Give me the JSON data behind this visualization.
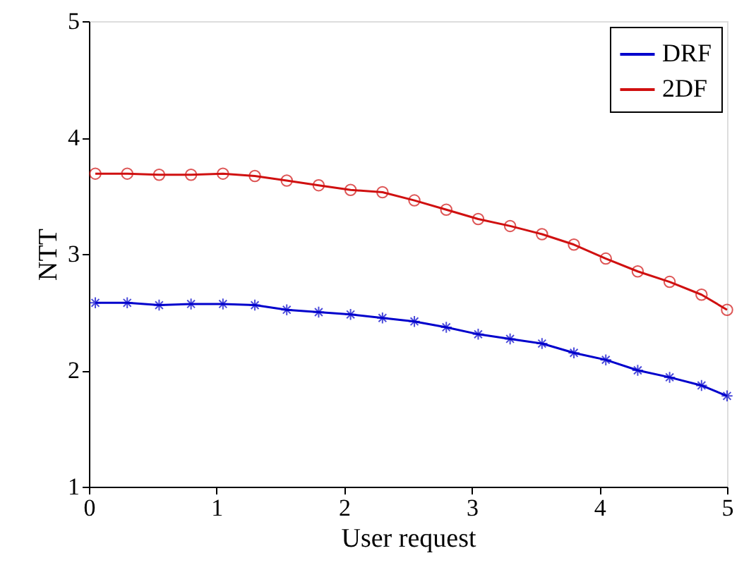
{
  "chart_data": {
    "type": "line",
    "xlabel": "User request",
    "ylabel": "NTT",
    "x": [
      0.05,
      0.3,
      0.55,
      0.8,
      1.05,
      1.3,
      1.55,
      1.8,
      2.05,
      2.3,
      2.55,
      2.8,
      3.05,
      3.3,
      3.55,
      3.8,
      4.05,
      4.3,
      4.55,
      4.8,
      5
    ],
    "series": [
      {
        "name": "DRF",
        "color": "#0000cc",
        "marker": "cross",
        "values": [
          2.58,
          2.58,
          2.56,
          2.57,
          2.57,
          2.56,
          2.52,
          2.5,
          2.48,
          2.45,
          2.42,
          2.37,
          2.31,
          2.27,
          2.23,
          2.15,
          2.09,
          2.0,
          1.94,
          1.87,
          1.78
        ]
      },
      {
        "name": "2DF",
        "color": "#d01010",
        "marker": "circle",
        "values": [
          3.69,
          3.69,
          3.68,
          3.68,
          3.69,
          3.67,
          3.63,
          3.59,
          3.55,
          3.53,
          3.46,
          3.38,
          3.3,
          3.24,
          3.17,
          3.08,
          2.96,
          2.85,
          2.76,
          2.65,
          2.52
        ]
      }
    ],
    "xlim": [
      0,
      5
    ],
    "xticks": [
      0,
      1,
      2,
      3,
      4,
      5
    ],
    "ylim": [
      1,
      5
    ],
    "yticks": [
      1,
      2,
      3,
      4,
      5
    ],
    "grid": false,
    "legend": "top right",
    "line_style": "solid"
  }
}
